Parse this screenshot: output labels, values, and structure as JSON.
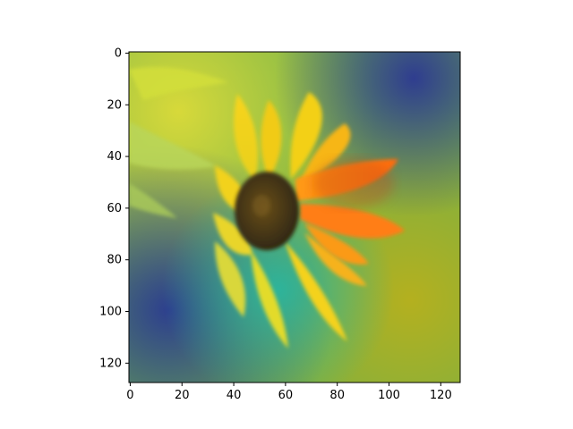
{
  "figure": {
    "x_axis": {
      "range": [
        -0.5,
        127.5
      ],
      "ticks": [
        0,
        20,
        40,
        60,
        80,
        100,
        120
      ]
    },
    "y_axis": {
      "range": [
        127.5,
        -0.5
      ],
      "ticks": [
        0,
        20,
        40,
        60,
        80,
        100,
        120
      ],
      "inverted": true
    },
    "image": {
      "subject": "sunflower-with-heatmap-overlay",
      "pixel_size": [
        128,
        128
      ],
      "colors": {
        "overlay_green": "#5fae3a",
        "overlay_teal": "#2fb59a",
        "overlay_blue": "#3a4b9a",
        "overlay_olive": "#9ea61d",
        "petal_yellow": "#f6d21a",
        "petal_orange": "#ff7a10",
        "disk_brown": "#4b3a16"
      }
    }
  }
}
